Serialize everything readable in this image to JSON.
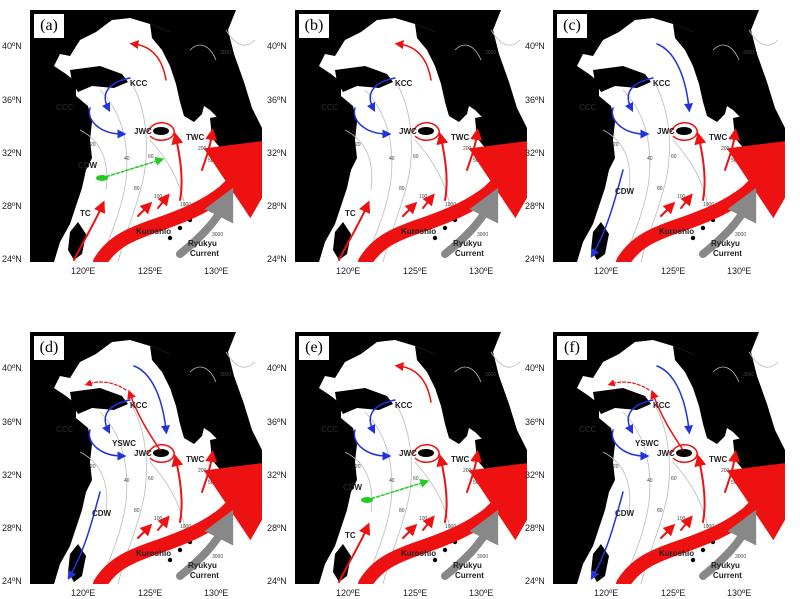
{
  "axes": {
    "y_ticks": [
      "40ºN",
      "36ºN",
      "32ºN",
      "28ºN",
      "24ºN"
    ],
    "x_ticks": [
      "120ºE",
      "125ºE",
      "130ºE"
    ]
  },
  "panels": [
    {
      "id": "a",
      "label": "(a)",
      "labels": [
        "KCC",
        "CCC",
        "JWC",
        "CDW",
        "TWC",
        "TC",
        "Kuroshio",
        "Ryukyu Current"
      ],
      "depths": [
        "3000",
        "20",
        "40",
        "60",
        "80",
        "100",
        "200",
        "500",
        "1000",
        "3000"
      ],
      "cdw_dir": "east",
      "ccc_dir": "south",
      "kcc_dir": "north",
      "ywsc": false,
      "tc": true
    },
    {
      "id": "b",
      "label": "(b)",
      "labels": [
        "KCC",
        "CCC",
        "JWC",
        "TWC",
        "TC",
        "Kuroshio",
        "Ryukyu Current"
      ],
      "depths": [
        "3000",
        "20",
        "40",
        "60",
        "80",
        "100",
        "200",
        "500",
        "1000",
        "3000"
      ],
      "cdw_dir": "none",
      "ccc_dir": "south",
      "kcc_dir": "north",
      "ywsc": false,
      "tc": true
    },
    {
      "id": "c",
      "label": "(c)",
      "labels": [
        "KCC",
        "CCC",
        "JWC",
        "TWC",
        "CDW",
        "Kuroshio",
        "Ryukyu Current"
      ],
      "depths": [
        "3000",
        "20",
        "40",
        "60",
        "80",
        "100",
        "200",
        "500",
        "1000",
        "3000"
      ],
      "cdw_dir": "south",
      "ccc_dir": "south",
      "kcc_dir": "south",
      "ywsc": false,
      "tc": false
    },
    {
      "id": "d",
      "label": "(d)",
      "labels": [
        "KCC",
        "CCC",
        "YSWC",
        "JWC",
        "TWC",
        "CDW",
        "Kuroshio",
        "Ryukyu Current"
      ],
      "depths": [
        "3000",
        "20",
        "40",
        "60",
        "80",
        "100",
        "200",
        "500",
        "1000",
        "3000"
      ],
      "cdw_dir": "south",
      "ccc_dir": "south",
      "kcc_dir": "south",
      "ywsc": true,
      "tc": false
    },
    {
      "id": "e",
      "label": "(e)",
      "labels": [
        "KCC",
        "CCC",
        "JWC",
        "CDW",
        "TWC",
        "TC",
        "Kuroshio",
        "Ryukyu Current"
      ],
      "depths": [
        "3000",
        "20",
        "40",
        "60",
        "80",
        "100",
        "200",
        "500",
        "1000",
        "3000"
      ],
      "cdw_dir": "east",
      "ccc_dir": "south",
      "kcc_dir": "north",
      "ywsc": false,
      "tc": true
    },
    {
      "id": "f",
      "label": "(f)",
      "labels": [
        "KCC",
        "CCC",
        "YSWC",
        "JWC",
        "TWC",
        "CDW",
        "Kuroshio",
        "Ryukyu Current"
      ],
      "depths": [
        "3000",
        "20",
        "40",
        "60",
        "80",
        "100",
        "200",
        "500",
        "1000",
        "3000"
      ],
      "cdw_dir": "south",
      "ccc_dir": "south",
      "kcc_dir": "south",
      "ywsc": true,
      "tc": false
    }
  ],
  "colors": {
    "warm": "#ee1111",
    "cold": "#2233dd",
    "cdw": "#22cc22",
    "ryukyu": "#888888",
    "land": "#000000",
    "sea": "#ffffff",
    "contour": "#bbbbbb"
  }
}
